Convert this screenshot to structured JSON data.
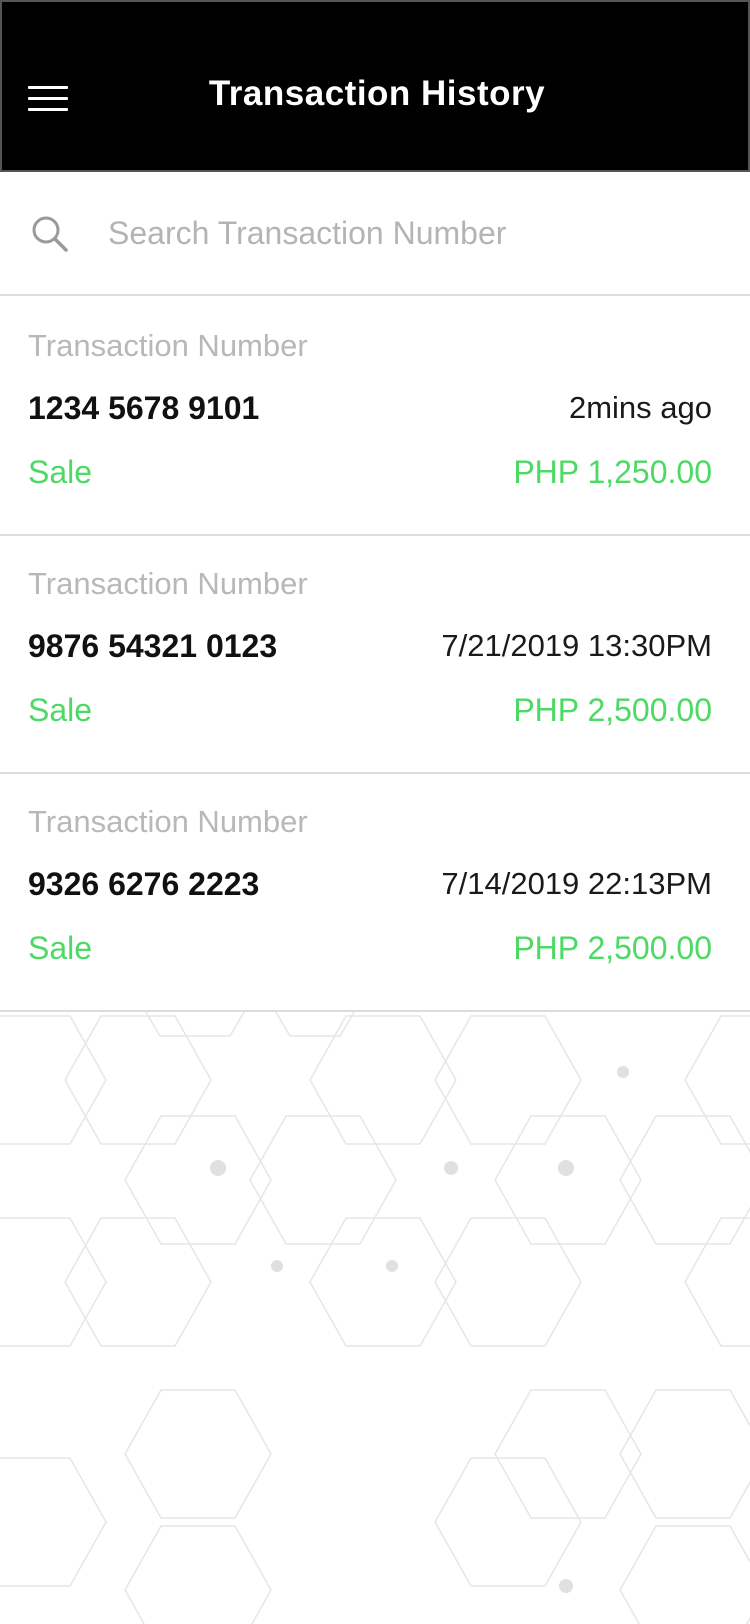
{
  "header": {
    "title": "Transaction History",
    "menu_icon": "hamburger-menu-icon"
  },
  "search": {
    "placeholder": "Search Transaction Number",
    "value": "",
    "icon": "search-icon"
  },
  "transactions": [
    {
      "label": "Transaction Number",
      "number": "1234 5678 9101",
      "time": "2mins ago",
      "type": "Sale",
      "amount": "PHP 1,250.00"
    },
    {
      "label": "Transaction Number",
      "number": "9876 54321 0123",
      "time": "7/21/2019 13:30PM",
      "type": "Sale",
      "amount": "PHP 2,500.00"
    },
    {
      "label": "Transaction Number",
      "number": "9326 6276 2223",
      "time": "7/14/2019 22:13PM",
      "type": "Sale",
      "amount": "PHP 2,500.00"
    }
  ],
  "colors": {
    "header_bg": "#000000",
    "accent_green": "#4cd964",
    "label_gray": "#b8b8b8"
  }
}
